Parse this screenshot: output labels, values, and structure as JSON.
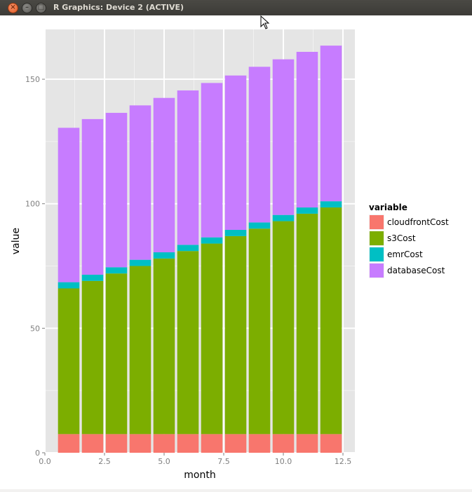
{
  "window": {
    "title": "R Graphics: Device 2 (ACTIVE)",
    "close_label": "×",
    "minimize_label": "–",
    "maximize_label": "□"
  },
  "chart_data": {
    "type": "bar",
    "stacked": true,
    "xlabel": "month",
    "ylabel": "value",
    "xlim": [
      0,
      13
    ],
    "ylim": [
      0,
      170
    ],
    "xticks": [
      0,
      2.5,
      5,
      7.5,
      10,
      12.5
    ],
    "xtick_labels": [
      "0.0",
      "2.5",
      "5.0",
      "7.5",
      "10.0",
      "12.5"
    ],
    "yticks": [
      0,
      50,
      100,
      150
    ],
    "ytick_labels": [
      "0",
      "50",
      "100",
      "150"
    ],
    "grid": true,
    "legend": {
      "title": "variable",
      "placement": "right"
    },
    "x": [
      1,
      2,
      3,
      4,
      5,
      6,
      7,
      8,
      9,
      10,
      11,
      12
    ],
    "series": [
      {
        "name": "cloudfrontCost",
        "color": "#F8766D",
        "values": [
          7.5,
          7.5,
          7.5,
          7.5,
          7.5,
          7.5,
          7.5,
          7.5,
          7.5,
          7.5,
          7.5,
          7.5
        ]
      },
      {
        "name": "s3Cost",
        "color": "#7CAE00",
        "values": [
          58.5,
          61.5,
          64.5,
          67.5,
          70.5,
          73.5,
          76.5,
          79.5,
          82.5,
          85.5,
          88.5,
          91.0
        ]
      },
      {
        "name": "emrCost",
        "color": "#00BFC4",
        "values": [
          2.5,
          2.5,
          2.5,
          2.5,
          2.5,
          2.5,
          2.5,
          2.5,
          2.5,
          2.5,
          2.5,
          2.5
        ]
      },
      {
        "name": "databaseCost",
        "color": "#C77CFF",
        "values": [
          62.0,
          62.5,
          62.0,
          62.0,
          62.0,
          62.0,
          62.0,
          62.0,
          62.5,
          62.5,
          62.5,
          62.5
        ]
      }
    ]
  }
}
